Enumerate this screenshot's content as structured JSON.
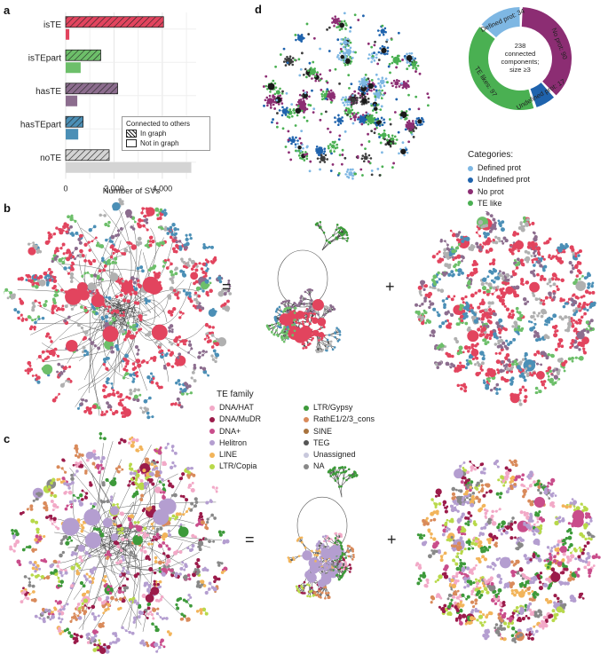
{
  "panels": {
    "a": "a",
    "b": "b",
    "c": "c",
    "d": "d"
  },
  "operators": {
    "equals": "=",
    "plus": "+"
  },
  "chart_data": [
    {
      "type": "bar",
      "orientation": "horizontal",
      "categories": [
        "isTE",
        "isTEpart",
        "hasTE",
        "hasTEpart",
        "noTE"
      ],
      "series": [
        {
          "name": "In graph",
          "hatched": true,
          "values": [
            4050,
            1450,
            2150,
            720,
            1800
          ]
        },
        {
          "name": "Not in graph",
          "hatched": false,
          "values": [
            150,
            620,
            480,
            520,
            5200
          ]
        }
      ],
      "colors": {
        "isTE": "#e2445e",
        "isTEpart": "#6dbf6a",
        "hasTE": "#8c6d8e",
        "hasTEpart": "#4b8fb6",
        "noTE": "#d4d4d4"
      },
      "xlabel": "Number of SVs",
      "xticks": [
        "0",
        "2,000",
        "4,000"
      ],
      "xtick_values": [
        0,
        2000,
        4000
      ],
      "xlim": [
        0,
        5400
      ],
      "legend_title": "Connected to others",
      "legend_placement": "bottom-right",
      "grid": true
    },
    {
      "type": "pie",
      "style": "donut",
      "center_text": [
        "238",
        "connected",
        "components;",
        "size ≥3"
      ],
      "slices": [
        {
          "label": "No prot: 90",
          "value": 90,
          "color": "#8c2d73"
        },
        {
          "label": "Undefined prot: 17",
          "value": 17,
          "color": "#1f63ad"
        },
        {
          "label": "TE likes: 97",
          "value": 97,
          "color": "#4ab052"
        },
        {
          "label": "Defined prot: 34",
          "value": 34,
          "color": "#7eb7e3"
        }
      ],
      "legend_title": "Categories:",
      "legend": [
        {
          "label": "Defined prot",
          "color": "#7eb7e3"
        },
        {
          "label": "Undefined prot",
          "color": "#1f63ad"
        },
        {
          "label": "No prot",
          "color": "#8c2d73"
        },
        {
          "label": "TE like",
          "color": "#4ab052"
        }
      ]
    }
  ],
  "te_family_legend": {
    "title": "TE family",
    "items": [
      {
        "label": "DNA/HAT",
        "color": "#f2a9c7"
      },
      {
        "label": "DNA/MuDR",
        "color": "#9b1b4a"
      },
      {
        "label": "DNA+",
        "color": "#c94d8b"
      },
      {
        "label": "Helitron",
        "color": "#b49ed0"
      },
      {
        "label": "LINE",
        "color": "#f2b45a"
      },
      {
        "label": "LTR/Copia",
        "color": "#b8d94a"
      },
      {
        "label": "LTR/Gypsy",
        "color": "#3d9a3a"
      },
      {
        "label": "RathE1/2/3_cons",
        "color": "#d98a5a"
      },
      {
        "label": "SINE",
        "color": "#a8733e"
      },
      {
        "label": "TEG",
        "color": "#555555"
      },
      {
        "label": "Unassigned",
        "color": "#c8c8dc"
      },
      {
        "label": "NA",
        "color": "#888888"
      }
    ]
  },
  "network_palettes": {
    "b": [
      "#e2445e",
      "#e2445e",
      "#e2445e",
      "#6dbf6a",
      "#4b8fb6",
      "#8c6d8e",
      "#b0b0b0"
    ],
    "c": [
      "#b49ed0",
      "#b49ed0",
      "#9b1b4a",
      "#f2b45a",
      "#b8d94a",
      "#3d9a3a",
      "#c94d8b",
      "#f2a9c7",
      "#d98a5a",
      "#888888"
    ],
    "d": [
      "#8c2d73",
      "#8c2d73",
      "#4ab052",
      "#4ab052",
      "#7eb7e3",
      "#1f63ad",
      "#3d3d3d"
    ]
  }
}
